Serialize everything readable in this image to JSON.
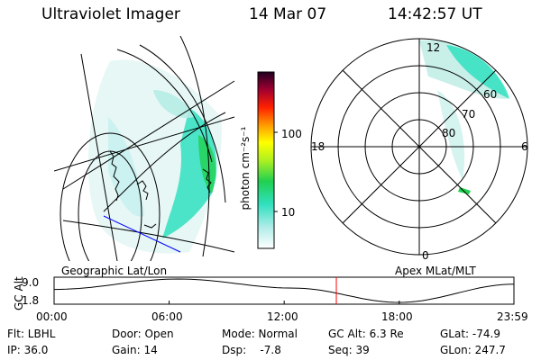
{
  "header": {
    "title": "Ultraviolet Imager",
    "date": "14 Mar 07",
    "time": "14:42:57 UT"
  },
  "colorbar": {
    "unit_label": "photon cm⁻²s⁻¹",
    "ticks": [
      "100",
      "10"
    ],
    "scale": "log"
  },
  "polar_plot": {
    "mlt_labels": {
      "top": "12",
      "left": "18",
      "right": "6",
      "bottom": "0"
    },
    "lat_labels": [
      "60",
      "70",
      "80"
    ]
  },
  "map_labels": {
    "left": "Geographic Lat/Lon",
    "right": "Apex MLat/MLT"
  },
  "altitude_plot": {
    "ylabel": "GC Alt",
    "yticks": [
      "9.0",
      "1.8"
    ],
    "xticks": [
      "00:00",
      "06:00",
      "12:00",
      "18:00",
      "23:59"
    ],
    "current_time_hours": 14.72,
    "orbit_hours": [
      0,
      6.5,
      12.5,
      18,
      23.98
    ],
    "orbit_alt": [
      5.8,
      9.0,
      6.2,
      1.8,
      7.4
    ]
  },
  "info": {
    "flt": "Flt: LBHL",
    "ip": "IP: 36.0",
    "door": "Door: Open",
    "gain": "Gain: 14",
    "mode": "Mode: Normal",
    "dsp": "Dsp:    -7.8",
    "gcalt": "GC Alt: 6.3 Re",
    "seq": "Seq: 39",
    "glat": "GLat: -74.9",
    "glon": "GLon: 247.7"
  },
  "colors": {
    "background": "#ffffff",
    "red_marker": "#ff0000",
    "blue_line": "#0000ff",
    "aurora_cyan": "#30e0c0",
    "aurora_green": "#20d050"
  }
}
